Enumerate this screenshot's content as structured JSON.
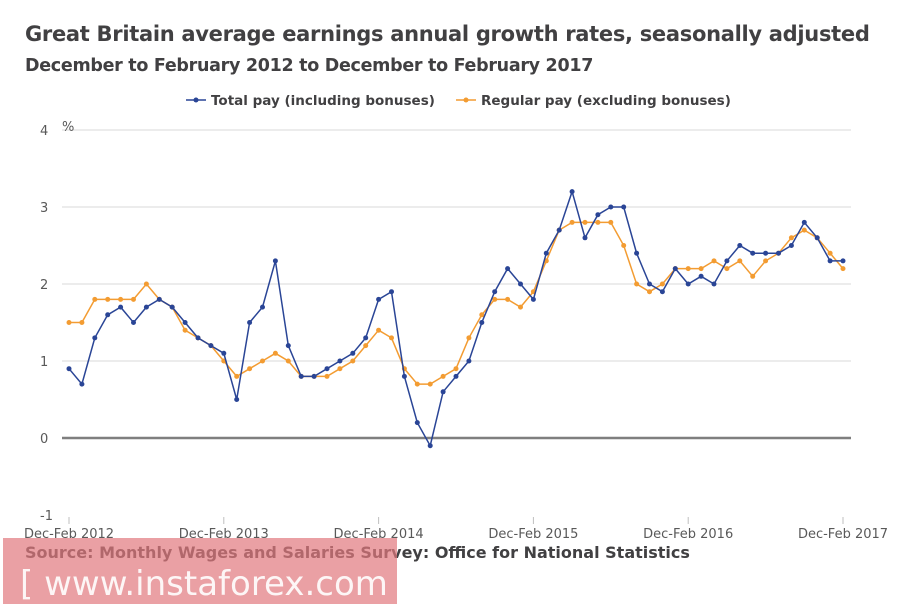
{
  "chart_data": {
    "type": "line",
    "title": "Great Britain average earnings annual growth rates, seasonally adjusted",
    "subtitle": "December to February 2012 to December to February 2017",
    "ylabel": "%",
    "ylim": [
      -1,
      4
    ],
    "yticks": [
      "4",
      "3",
      "2",
      "1",
      "0",
      "-1"
    ],
    "ytick_values": [
      4,
      3,
      2,
      1,
      0,
      -1
    ],
    "xtick_labels": [
      "Dec-Feb 2012",
      "Dec-Feb 2013",
      "Dec-Feb 2014",
      "Dec-Feb 2015",
      "Dec-Feb 2016",
      "Dec-Feb 2017"
    ],
    "xtick_index": [
      0,
      12,
      24,
      36,
      48,
      60
    ],
    "grid": true,
    "legend_position": "top",
    "series": [
      {
        "name": "Total pay (including bonuses)",
        "color": "#2a4596",
        "values": [
          0.9,
          0.7,
          1.3,
          1.6,
          1.7,
          1.5,
          1.7,
          1.8,
          1.7,
          1.5,
          1.3,
          1.2,
          1.1,
          0.5,
          1.5,
          1.7,
          2.3,
          1.2,
          0.8,
          0.8,
          0.9,
          1.0,
          1.1,
          1.3,
          1.8,
          1.9,
          0.8,
          0.2,
          -0.1,
          0.6,
          0.8,
          1.0,
          1.5,
          1.9,
          2.2,
          2.0,
          1.8,
          2.4,
          2.7,
          3.2,
          2.6,
          2.9,
          3.0,
          3.0,
          2.4,
          2.0,
          1.9,
          2.2,
          2.0,
          2.1,
          2.0,
          2.3,
          2.5,
          2.4,
          2.4,
          2.4,
          2.5,
          2.8,
          2.6,
          2.3,
          2.3
        ]
      },
      {
        "name": "Regular pay (excluding bonuses)",
        "color": "#f39c32",
        "values": [
          1.5,
          1.5,
          1.8,
          1.8,
          1.8,
          1.8,
          2.0,
          1.8,
          1.7,
          1.4,
          1.3,
          1.2,
          1.0,
          0.8,
          0.9,
          1.0,
          1.1,
          1.0,
          0.8,
          0.8,
          0.8,
          0.9,
          1.0,
          1.2,
          1.4,
          1.3,
          0.9,
          0.7,
          0.7,
          0.8,
          0.9,
          1.3,
          1.6,
          1.8,
          1.8,
          1.7,
          1.9,
          2.3,
          2.7,
          2.8,
          2.8,
          2.8,
          2.8,
          2.5,
          2.0,
          1.9,
          2.0,
          2.2,
          2.2,
          2.2,
          2.3,
          2.2,
          2.3,
          2.1,
          2.3,
          2.4,
          2.6,
          2.7,
          2.6,
          2.4,
          2.2
        ]
      }
    ]
  },
  "source": "Source: Monthly Wages and Salaries Survey: Office for National  Statistics",
  "watermark": "[ www.instaforex.com ]"
}
